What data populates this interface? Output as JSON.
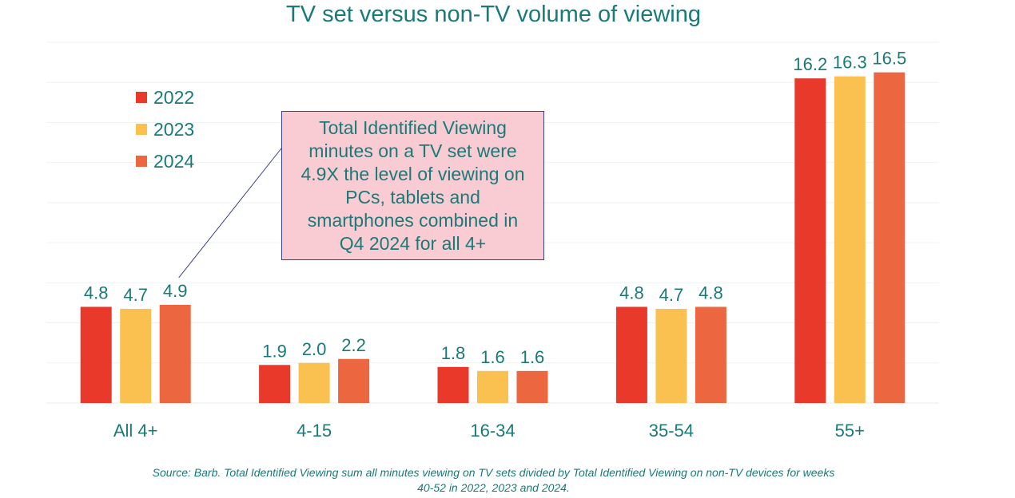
{
  "chart_data": {
    "type": "bar",
    "title": "TV set versus non-TV volume of viewing",
    "categories": [
      "All 4+",
      "4-15",
      "16-34",
      "35-54",
      "55+"
    ],
    "series": [
      {
        "name": "2022",
        "color": "#e8392b",
        "values": [
          4.8,
          1.9,
          1.8,
          4.8,
          16.2
        ]
      },
      {
        "name": "2023",
        "color": "#fac150",
        "values": [
          4.7,
          2.0,
          1.6,
          4.7,
          16.3
        ]
      },
      {
        "name": "2024",
        "color": "#ec6640",
        "values": [
          4.9,
          2.2,
          1.6,
          4.8,
          16.5
        ]
      }
    ],
    "ylim": [
      0,
      18
    ],
    "grid": true,
    "legend": "top-left",
    "annotation": {
      "lines": [
        "Total Identified Viewing",
        "minutes on a TV set were",
        "4.9X the level of viewing on",
        "PCs, tablets and",
        "smartphones combined in",
        "Q4 2024 for all 4+"
      ],
      "points_to": "All 4+ 2024"
    },
    "source": [
      "Source: Barb. Total Identified Viewing sum all minutes viewing on TV sets divided by Total Identified Viewing on non-TV devices for weeks",
      "40-52 in 2022, 2023 and 2024."
    ]
  }
}
